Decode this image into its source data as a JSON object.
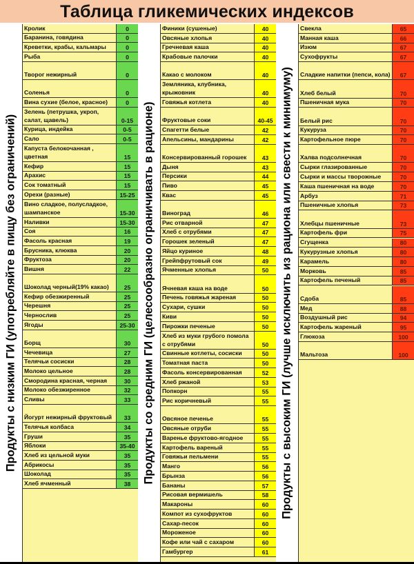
{
  "title": "Таблица гликемических индексов",
  "colors": {
    "low": "#6ad84f",
    "medium": "#ffff00",
    "high": "#ff3c14",
    "panel": "#fbf5a0",
    "title_bg": "#f8c8a6"
  },
  "groups": [
    {
      "label": "Продукты с низким ГИ (употребляйте в пищу без ограничений)",
      "level": "low",
      "items": [
        {
          "name": "Кролик",
          "gi": "0"
        },
        {
          "name": "Баранина, говядина",
          "gi": "0"
        },
        {
          "name": "Креветки, крабы, кальмары",
          "gi": "0"
        },
        {
          "name": "Рыба",
          "gi": "0"
        },
        {
          "name": "Творог нежирный",
          "gi": "0"
        },
        {
          "name": "Соленья",
          "gi": "0"
        },
        {
          "name": "Вина сухие (белое, красное)",
          "gi": "0"
        },
        {
          "name": "Зелень (петрушка, укроп, салат, щавель)",
          "gi": "0-15"
        },
        {
          "name": "Курица, индейка",
          "gi": "0-5"
        },
        {
          "name": "Сало",
          "gi": "0-5"
        },
        {
          "name": "Капуста белокочанная , цветная",
          "gi": "15"
        },
        {
          "name": "Кефир",
          "gi": "15"
        },
        {
          "name": "Арахис",
          "gi": "15"
        },
        {
          "name": "Сок томатный",
          "gi": "15"
        },
        {
          "name": "Орехи (разные)",
          "gi": "15-25"
        },
        {
          "name": "Вино сладкое, полусладкое, шампанское",
          "gi": "15-30"
        },
        {
          "name": "Наливки",
          "gi": "15-30"
        },
        {
          "name": "Соя",
          "gi": "16"
        },
        {
          "name": "Фасоль красная",
          "gi": "19"
        },
        {
          "name": "Брусника, клюква",
          "gi": "20"
        },
        {
          "name": "Фруктоза",
          "gi": "20"
        },
        {
          "name": "Вишня",
          "gi": "22"
        },
        {
          "name": "Шоколад черный(19% какао)",
          "gi": "25"
        },
        {
          "name": "Кефир обезжиренный",
          "gi": "25"
        },
        {
          "name": "Черешня",
          "gi": "25"
        },
        {
          "name": "Чернослив",
          "gi": "25"
        },
        {
          "name": "Ягоды",
          "gi": "25-30"
        },
        {
          "name": "Борщ",
          "gi": "30"
        },
        {
          "name": "Чечевица",
          "gi": "27"
        },
        {
          "name": "Телячьи сосиски",
          "gi": "28"
        },
        {
          "name": "Молоко цельное",
          "gi": "28"
        },
        {
          "name": "Смородина красная, черная",
          "gi": "30"
        },
        {
          "name": "Молоко обезжиренное",
          "gi": "32"
        },
        {
          "name": "Сливы",
          "gi": "33"
        },
        {
          "name": "Йогурт нежирный фруктовый",
          "gi": "33"
        },
        {
          "name": "Телячья колбаса",
          "gi": "34"
        },
        {
          "name": "Груши",
          "gi": "35"
        },
        {
          "name": "Яблоки",
          "gi": "35-40"
        },
        {
          "name": "Хлеб из цельной муки",
          "gi": "35"
        },
        {
          "name": "Абрикосы",
          "gi": "35"
        },
        {
          "name": "Шоколад",
          "gi": "35"
        },
        {
          "name": "Хлеб ячменный",
          "gi": "38"
        }
      ]
    },
    {
      "label": "Продукты со средним ГИ (целесообразно ограничивать в рационе)",
      "level": "medium",
      "items": [
        {
          "name": "Финики (сушеные)",
          "gi": "40"
        },
        {
          "name": "Овсяные хлопья",
          "gi": "40"
        },
        {
          "name": "Гречневая каша",
          "gi": "40"
        },
        {
          "name": "Крабовые палочки",
          "gi": "40"
        },
        {
          "name": "Какао с молоком",
          "gi": "40"
        },
        {
          "name": "Земляника, клубника, крыжовник",
          "gi": "40"
        },
        {
          "name": "Говяжья котлета",
          "gi": "40"
        },
        {
          "name": "Фруктовые соки",
          "gi": "40-45"
        },
        {
          "name": "Спагетти белые",
          "gi": "42"
        },
        {
          "name": "Апельсины, мандарины",
          "gi": "42"
        },
        {
          "name": "Консервированный горошек",
          "gi": "43"
        },
        {
          "name": "Дыня",
          "gi": "43"
        },
        {
          "name": "Персики",
          "gi": "44"
        },
        {
          "name": "Пиво",
          "gi": "45"
        },
        {
          "name": "Квас",
          "gi": "45"
        },
        {
          "name": "Виноград",
          "gi": "46"
        },
        {
          "name": "Рис отварной",
          "gi": "47"
        },
        {
          "name": "Хлеб с отрубями",
          "gi": "47"
        },
        {
          "name": "Горошек зеленый",
          "gi": "47"
        },
        {
          "name": "Яйцо куриное",
          "gi": "48"
        },
        {
          "name": "Грейпфрутовый сок",
          "gi": "49"
        },
        {
          "name": "Ячменные хлопья",
          "gi": "50"
        },
        {
          "name": "Ячневая каша на воде",
          "gi": "50"
        },
        {
          "name": "Печень говяжья жареная",
          "gi": "50"
        },
        {
          "name": "Сухари, сушки",
          "gi": "50"
        },
        {
          "name": "Киви",
          "gi": "50"
        },
        {
          "name": "Пирожки печеные",
          "gi": "50"
        },
        {
          "name": "Хлеб из муки грубого помола с отрубями",
          "gi": "50"
        },
        {
          "name": "Свинные котлеты, сосиски",
          "gi": "50"
        },
        {
          "name": "Томатная паста",
          "gi": "50"
        },
        {
          "name": "Фасоль консервированная",
          "gi": "52"
        },
        {
          "name": "Хлеб ржаной",
          "gi": "53"
        },
        {
          "name": "Попкорн",
          "gi": "55"
        },
        {
          "name": "Рис коричневый",
          "gi": "55"
        },
        {
          "name": "Овсяное печенье",
          "gi": "55"
        },
        {
          "name": "Овсяные отруби",
          "gi": "55"
        },
        {
          "name": "Варенье фруктово-ягодное",
          "gi": "55"
        },
        {
          "name": "Картофель вареный",
          "gi": "55"
        },
        {
          "name": "Говяжьи пельмени",
          "gi": "55"
        },
        {
          "name": "Манго",
          "gi": "56"
        },
        {
          "name": "Брынза",
          "gi": "56"
        },
        {
          "name": "Бананы",
          "gi": "57"
        },
        {
          "name": "Рисовая вермишель",
          "gi": "58"
        },
        {
          "name": "Макароны",
          "gi": "60"
        },
        {
          "name": "Компот из сухофруктов",
          "gi": "60"
        },
        {
          "name": "Сахар-песок",
          "gi": "60"
        },
        {
          "name": "Мороженое",
          "gi": "60"
        },
        {
          "name": "Кофе или чай с сахаром",
          "gi": "60"
        },
        {
          "name": "Гамбургер",
          "gi": "61"
        }
      ]
    },
    {
      "label": "Продукты с высоким ГИ (лучше исключить из рациона или свести к минимуму)",
      "level": "high",
      "items": [
        {
          "name": "Свекла",
          "gi": "65"
        },
        {
          "name": "Манная каша",
          "gi": "66"
        },
        {
          "name": "Изюм",
          "gi": "67"
        },
        {
          "name": "Сухофрукты",
          "gi": "67"
        },
        {
          "name": "Сладкие напитки (пепси, кола)",
          "gi": "67"
        },
        {
          "name": "Хлеб белый",
          "gi": "70"
        },
        {
          "name": "Пшеничная мука",
          "gi": "70"
        },
        {
          "name": "Белый рис",
          "gi": "70"
        },
        {
          "name": "Кукуруза",
          "gi": "70"
        },
        {
          "name": "Картофельное пюре",
          "gi": "70"
        },
        {
          "name": "Халва подсолнечная",
          "gi": "70"
        },
        {
          "name": "Сырки глазированные",
          "gi": "70"
        },
        {
          "name": "Сырки и массы творожные",
          "gi": "70"
        },
        {
          "name": "Каша пшеничная на воде",
          "gi": "70"
        },
        {
          "name": "Арбуз",
          "gi": "71"
        },
        {
          "name": "Пшеничные хлопья",
          "gi": "73"
        },
        {
          "name": "Хлебцы пшеничные",
          "gi": "73"
        },
        {
          "name": "Картофель фри",
          "gi": "75"
        },
        {
          "name": "Сгущенка",
          "gi": "80"
        },
        {
          "name": "Кукурузные хлопья",
          "gi": "80"
        },
        {
          "name": "Карамель",
          "gi": "80"
        },
        {
          "name": "Морковь",
          "gi": "85"
        },
        {
          "name": "Картофель печеный",
          "gi": "85"
        },
        {
          "name": "Сдоба",
          "gi": "85"
        },
        {
          "name": "Мед",
          "gi": "88"
        },
        {
          "name": "Воздушный рис",
          "gi": "94"
        },
        {
          "name": "Картофель жареный",
          "gi": "95"
        },
        {
          "name": "Глюкоза",
          "gi": "100"
        },
        {
          "name": "Мальтоза",
          "gi": "100"
        }
      ]
    }
  ]
}
